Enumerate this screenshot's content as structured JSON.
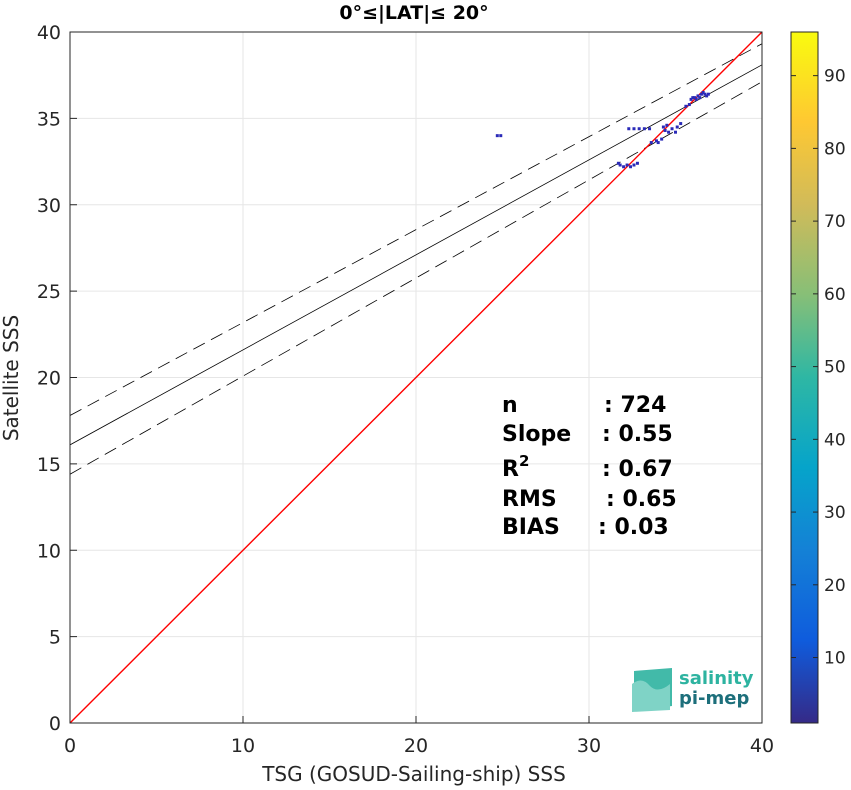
{
  "chart_data": {
    "type": "scatter",
    "title": "0°≤|LAT|≤ 20°",
    "xlabel": "TSG (GOSUD-Sailing-ship) SSS",
    "ylabel": "Satellite SSS",
    "xlim": [
      0,
      40
    ],
    "ylim": [
      0,
      40
    ],
    "xticks": [
      "0",
      "10",
      "20",
      "30",
      "40"
    ],
    "yticks": [
      "0",
      "5",
      "10",
      "15",
      "20",
      "25",
      "30",
      "35",
      "40"
    ],
    "grid": true,
    "identity_line": {
      "color": "#ff0000",
      "from": [
        0,
        0
      ],
      "to": [
        40,
        40
      ]
    },
    "fit_line": {
      "intercept": 16.1,
      "slope": 0.55
    },
    "fit_bounds": [
      {
        "intercept": 17.8,
        "slope": 0.538
      },
      {
        "intercept": 14.4,
        "slope": 0.568
      }
    ],
    "points": [
      [
        24.7,
        34.0
      ],
      [
        24.9,
        34.0
      ],
      [
        31.7,
        32.4
      ],
      [
        31.8,
        32.3
      ],
      [
        32.0,
        32.2
      ],
      [
        32.2,
        32.3
      ],
      [
        32.4,
        32.2
      ],
      [
        32.6,
        32.3
      ],
      [
        32.8,
        32.4
      ],
      [
        32.3,
        34.4
      ],
      [
        32.6,
        34.4
      ],
      [
        32.9,
        34.4
      ],
      [
        33.2,
        34.4
      ],
      [
        33.5,
        34.4
      ],
      [
        33.6,
        33.6
      ],
      [
        33.9,
        33.7
      ],
      [
        34.2,
        33.8
      ],
      [
        34.0,
        33.6
      ],
      [
        34.4,
        34.3
      ],
      [
        34.5,
        34.6
      ],
      [
        34.6,
        34.2
      ],
      [
        34.8,
        34.4
      ],
      [
        35.0,
        34.2
      ],
      [
        35.1,
        34.5
      ],
      [
        35.3,
        34.7
      ],
      [
        34.3,
        34.5
      ],
      [
        35.6,
        35.7
      ],
      [
        35.8,
        35.8
      ],
      [
        35.9,
        36.1
      ],
      [
        36.0,
        36.2
      ],
      [
        36.1,
        36.2
      ],
      [
        36.2,
        36.1
      ],
      [
        36.3,
        36.3
      ],
      [
        36.4,
        36.2
      ],
      [
        36.5,
        36.4
      ],
      [
        36.6,
        36.5
      ],
      [
        36.7,
        36.4
      ],
      [
        36.8,
        36.3
      ],
      [
        36.9,
        36.4
      ]
    ],
    "colorbar": {
      "range": [
        1,
        96
      ],
      "ticks": [
        "10",
        "20",
        "30",
        "40",
        "50",
        "60",
        "70",
        "80",
        "90"
      ],
      "colormap": "parula"
    },
    "annotation": {
      "labels": [
        "n",
        "Slope",
        "R",
        "RMS",
        "BIAS"
      ],
      "r_superscript": "2",
      "values": [
        ": 724",
        ": 0.55",
        ": 0.67",
        ": 0.65",
        ": 0.03"
      ]
    }
  },
  "logo": {
    "line1": "salinity",
    "line2": "pi-mep"
  }
}
